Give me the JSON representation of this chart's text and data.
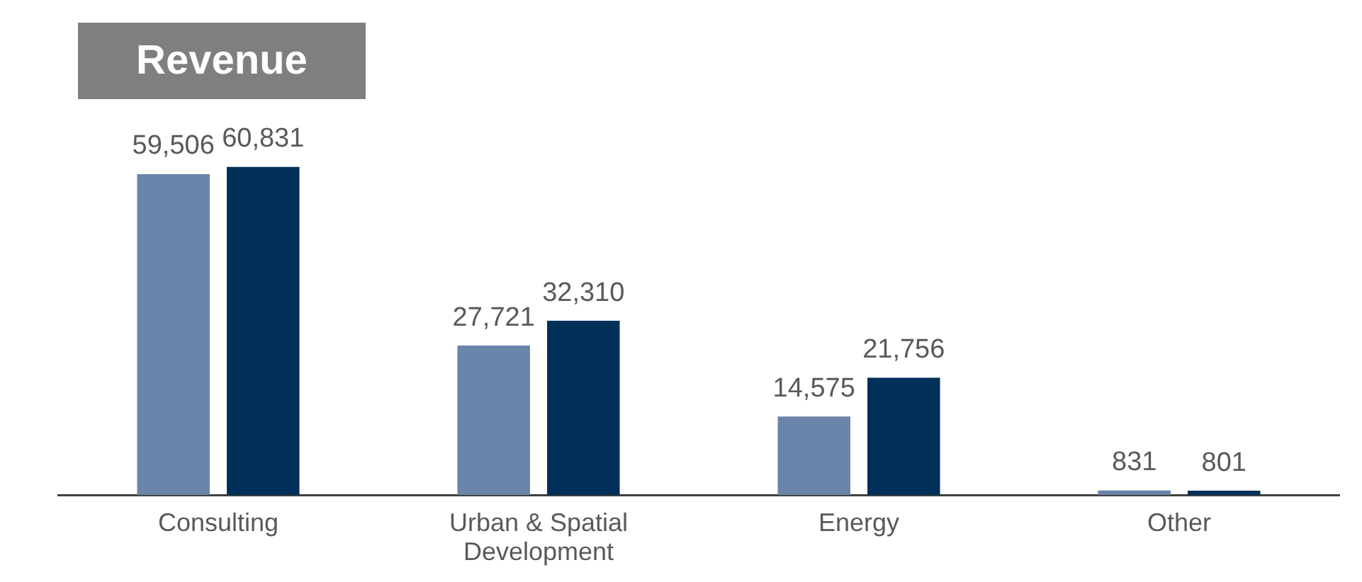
{
  "chart_data": {
    "type": "bar",
    "title": "Revenue",
    "categories": [
      "Consulting",
      "Urban & Spatial Development",
      "Energy",
      "Other"
    ],
    "series": [
      {
        "color": "#6a84aa",
        "values": [
          59506,
          27721,
          14575,
          831
        ],
        "value_labels": [
          "59,506",
          "27,721",
          "14,575",
          "831"
        ]
      },
      {
        "color": "#00305a",
        "values": [
          60831,
          32310,
          21756,
          801
        ],
        "value_labels": [
          "60,831",
          "32,310",
          "21,756",
          "801"
        ]
      }
    ],
    "grid": false,
    "legend": false,
    "tick_labels": "x"
  }
}
